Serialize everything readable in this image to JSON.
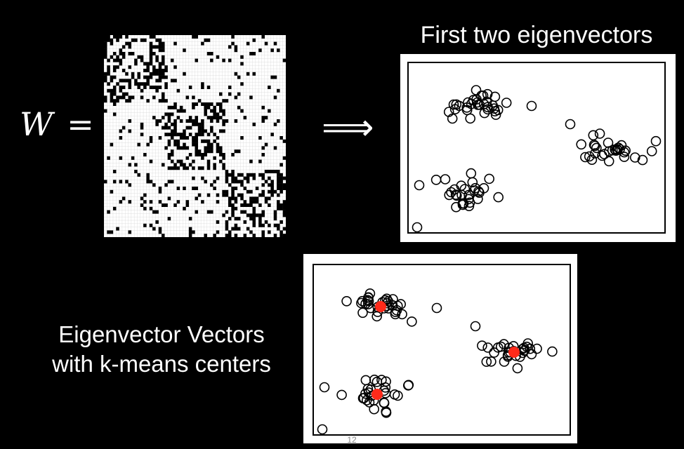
{
  "equation": {
    "variable": "W",
    "equals": "="
  },
  "arrow_symbol": "⟹",
  "top_title": "First two eigenvectors",
  "bottom_caption": {
    "line1": "Eigenvector Vectors",
    "line2": "with k-means centers"
  },
  "page_number": "12",
  "colors": {
    "background": "#000000",
    "text": "#ffffff",
    "point_stroke": "#000000",
    "center_fill": "#ff2a1a"
  },
  "matrix": {
    "block_structure": "three dense diagonal blocks on a sparse random background",
    "grid_size": 60,
    "block_count": 3
  },
  "clusters": {
    "count": 3,
    "k_means_centers": 3
  }
}
